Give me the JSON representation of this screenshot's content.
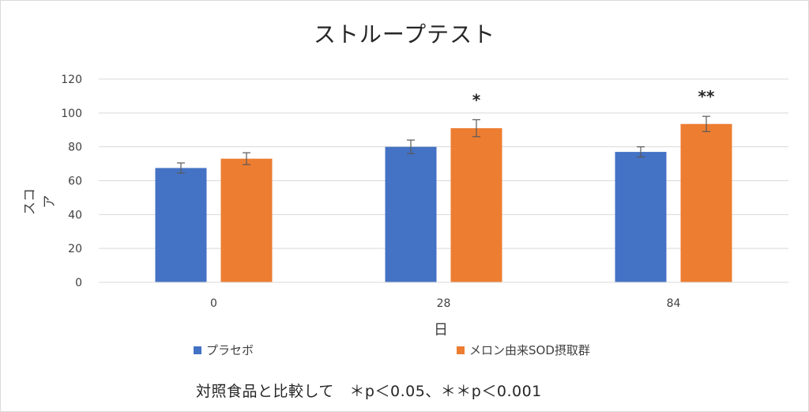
{
  "chart_data": {
    "type": "bar",
    "title": "ストループテスト",
    "xlabel": "日",
    "ylabel": "スコア",
    "ylim": [
      0,
      120
    ],
    "yticks": [
      0,
      20,
      40,
      60,
      80,
      100,
      120
    ],
    "grid": true,
    "legend_position": "bottom",
    "categories": [
      "0",
      "28",
      "84"
    ],
    "series": [
      {
        "name": "プラセボ",
        "color": "#4472C4",
        "values": [
          67.5,
          80,
          77
        ],
        "errors": [
          3,
          4,
          3
        ]
      },
      {
        "name": "メロン由来SOD摂取群",
        "color": "#ED7D31",
        "values": [
          73,
          91,
          93.5
        ],
        "errors": [
          3.5,
          5,
          4.5
        ]
      }
    ],
    "annotations": [
      "",
      "*",
      "**"
    ]
  },
  "footnote": "対照食品と比較して　＊p＜0.05、＊＊p＜0.001"
}
